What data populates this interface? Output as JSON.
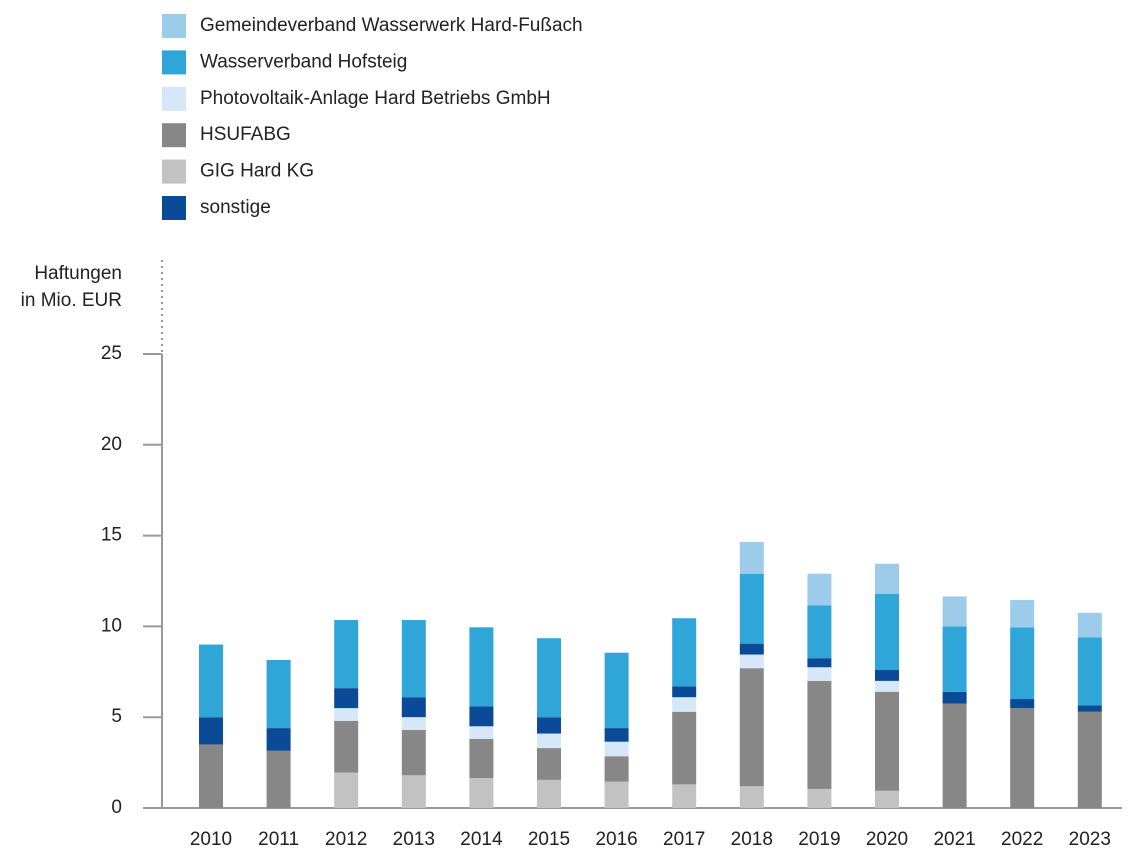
{
  "chart_data": {
    "type": "stacked_bar",
    "y_label": [
      "Haftungen",
      "in Mio. EUR"
    ],
    "categories": [
      "2010",
      "2011",
      "2012",
      "2013",
      "2014",
      "2015",
      "2016",
      "2017",
      "2018",
      "2019",
      "2020",
      "2021",
      "2022",
      "2023"
    ],
    "series": [
      {
        "name": "Gemeindeverband Wasserwerk Hard-Fußach",
        "color": "#9dcbea",
        "values": [
          0,
          0,
          0,
          0,
          0,
          0,
          0,
          0,
          1.75,
          1.75,
          1.65,
          1.65,
          1.5,
          1.35
        ]
      },
      {
        "name": "Wasserverband Hofsteig",
        "color": "#2fa5d8",
        "values": [
          4.0,
          3.75,
          3.75,
          4.25,
          4.35,
          4.35,
          4.15,
          3.75,
          3.85,
          2.9,
          4.2,
          3.6,
          3.95,
          3.75
        ]
      },
      {
        "name": "Photovoltaik-Anlage Hard Betriebs GmbH",
        "color": "#d6e8f7",
        "values": [
          0,
          0,
          0.7,
          0.7,
          0.7,
          0.8,
          0.8,
          0.8,
          0.75,
          0.75,
          0.6,
          0,
          0,
          0
        ]
      },
      {
        "name": "HSUFABG",
        "color": "#878787",
        "values": [
          3.5,
          3.15,
          2.85,
          2.5,
          2.15,
          1.75,
          1.4,
          4.0,
          6.5,
          5.95,
          5.45,
          5.75,
          5.5,
          5.3
        ]
      },
      {
        "name": "GIG Hard KG",
        "color": "#c2c2c2",
        "values": [
          0,
          0,
          1.95,
          1.8,
          1.65,
          1.55,
          1.45,
          1.3,
          1.2,
          1.05,
          0.95,
          0,
          0,
          0
        ]
      },
      {
        "name": "sonstige",
        "color": "#0a4a96",
        "values": [
          1.5,
          1.25,
          1.1,
          1.1,
          1.1,
          0.9,
          0.75,
          0.6,
          0.6,
          0.5,
          0.6,
          0.65,
          0.5,
          0.35
        ]
      }
    ],
    "ylim": [
      0,
      25
    ],
    "yticks": [
      0,
      5,
      10,
      15,
      20,
      25
    ],
    "grid": false
  }
}
